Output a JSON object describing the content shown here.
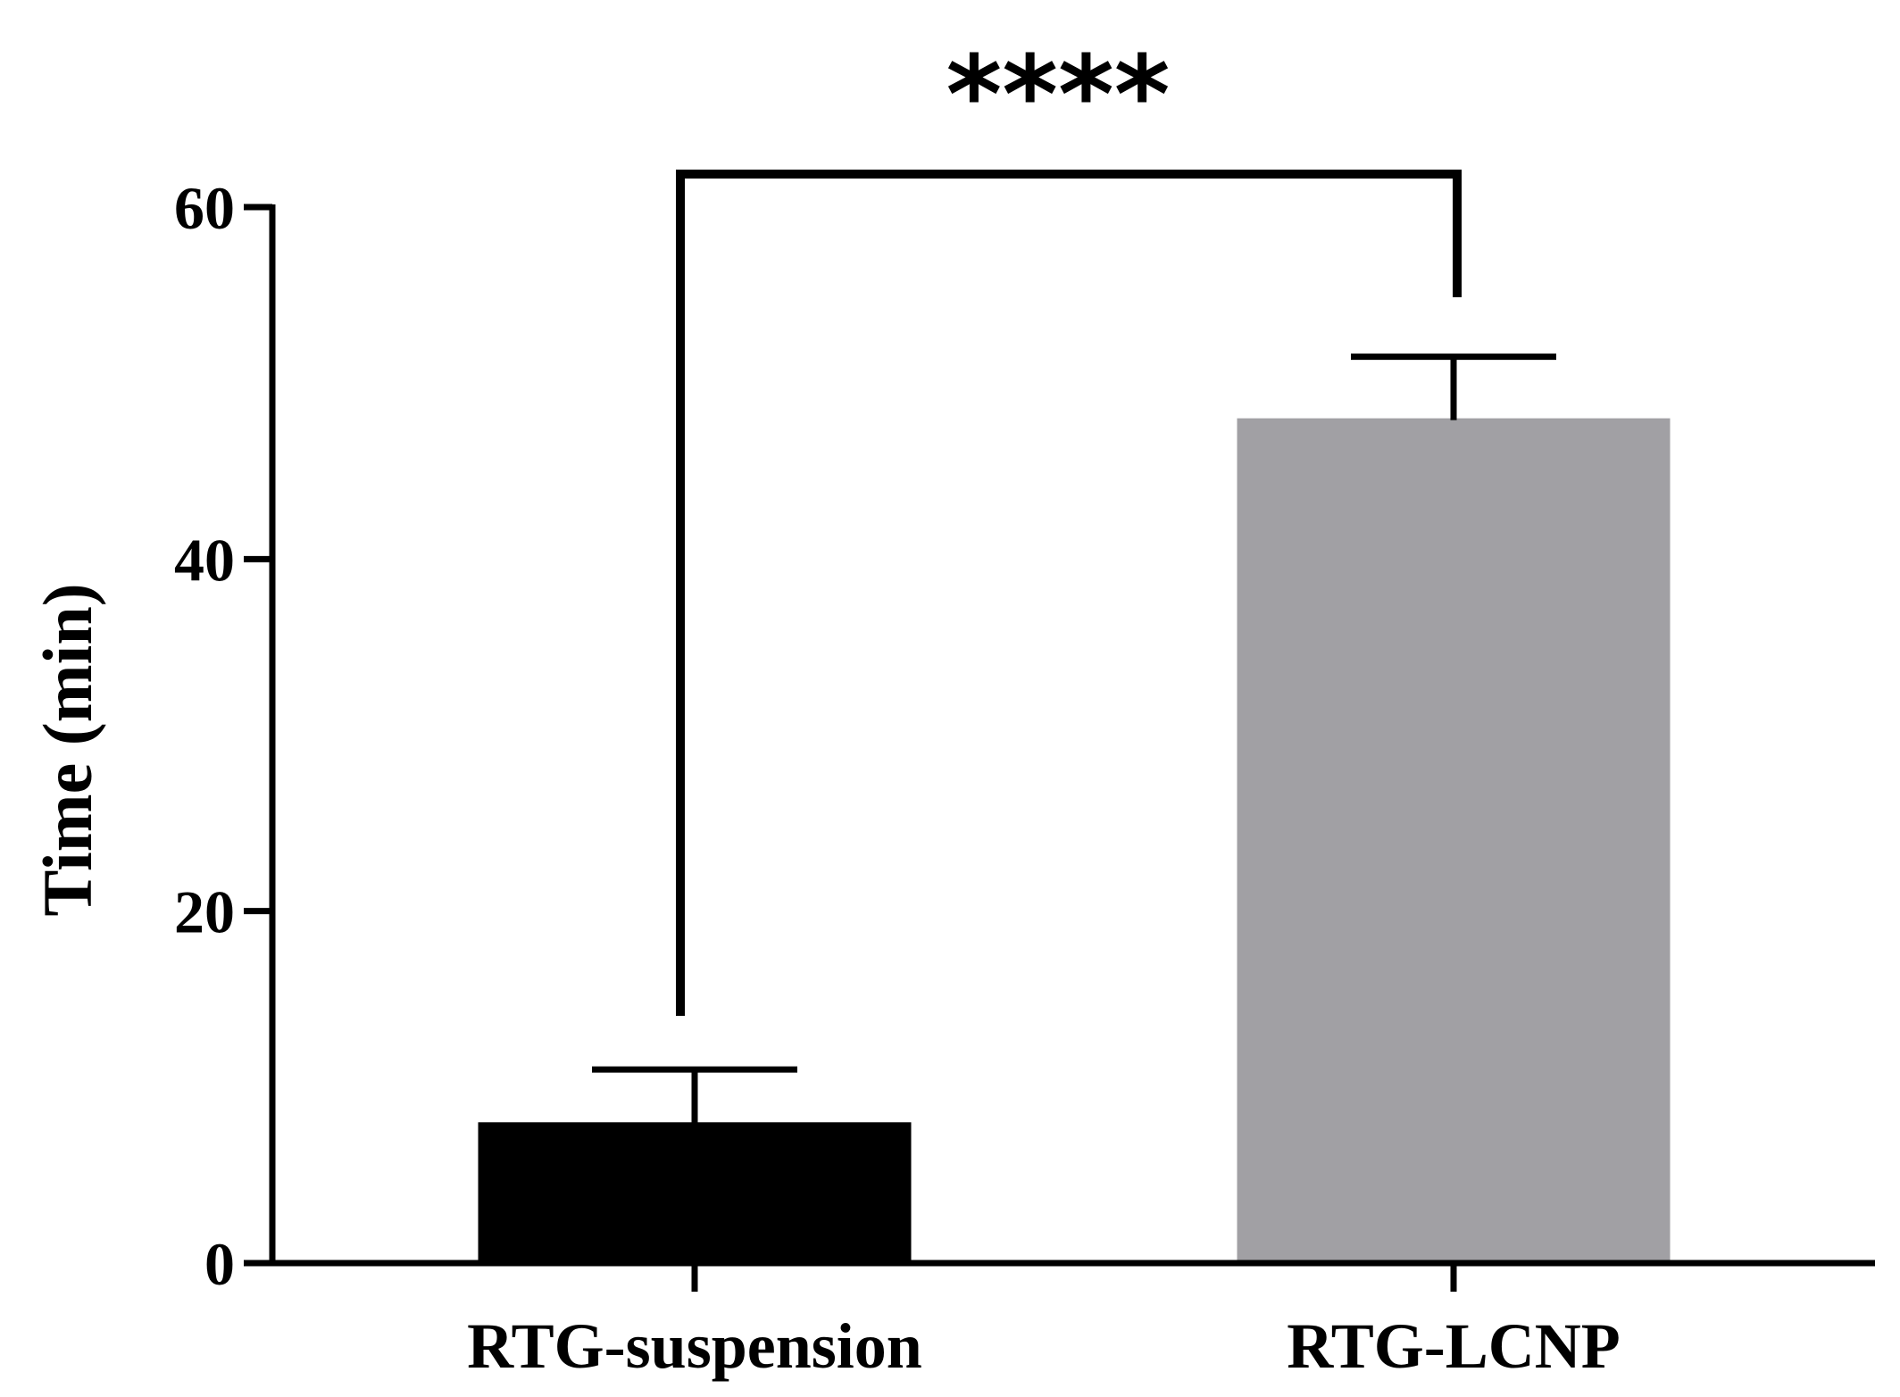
{
  "chart_data": {
    "type": "bar",
    "categories": [
      "RTG-suspension",
      "RTG-LCNP"
    ],
    "values": [
      8,
      48
    ],
    "errors": [
      3,
      3.5
    ],
    "colors": [
      "#000000",
      "#a1a0a4"
    ],
    "title": "",
    "xlabel": "",
    "ylabel": "Time (min)",
    "ylim": [
      0,
      60
    ],
    "yticks": [
      0,
      20,
      40,
      60
    ],
    "grid": false,
    "significance": {
      "label": "****",
      "between": [
        "RTG-suspension",
        "RTG-LCNP"
      ]
    }
  }
}
